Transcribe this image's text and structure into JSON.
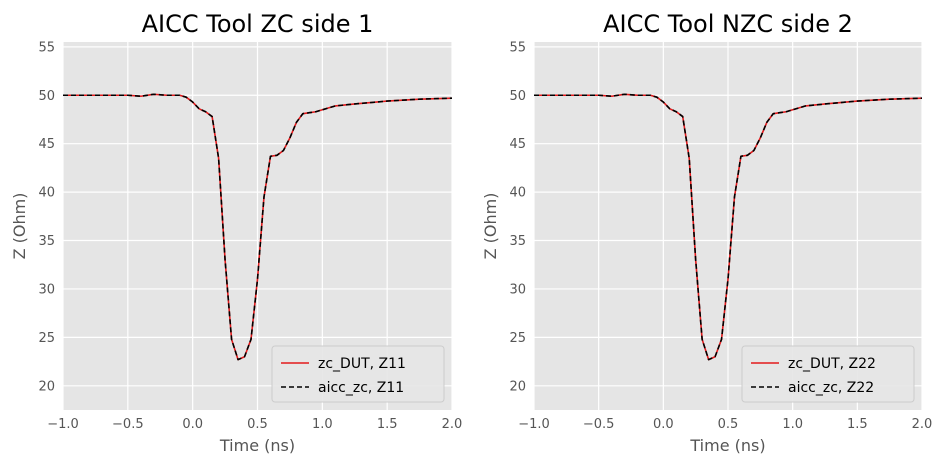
{
  "chart_data": [
    {
      "type": "line",
      "title": "AICC Tool ZC side 1",
      "xlabel": "Time (ns)",
      "ylabel": "Z (Ohm)",
      "xlim": [
        -1.0,
        2.0
      ],
      "ylim": [
        17.5,
        55.5
      ],
      "xticks": [
        "−1.0",
        "−0.5",
        "0.0",
        "0.5",
        "1.0",
        "1.5",
        "2.0"
      ],
      "xtick_values": [
        -1.0,
        -0.5,
        0.0,
        0.5,
        1.0,
        1.5,
        2.0
      ],
      "yticks": [
        "20",
        "25",
        "30",
        "35",
        "40",
        "45",
        "50",
        "55"
      ],
      "ytick_values": [
        20,
        25,
        30,
        35,
        40,
        45,
        50,
        55
      ],
      "grid": true,
      "background": "#e5e5e5",
      "legend_position": "lower right",
      "series": [
        {
          "name": "zc_DUT, Z11",
          "color": "#e41a1c",
          "style": "solid",
          "x": [
            -1.0,
            -0.75,
            -0.5,
            -0.4,
            -0.3,
            -0.2,
            -0.1,
            -0.05,
            0.0,
            0.05,
            0.1,
            0.15,
            0.2,
            0.25,
            0.3,
            0.35,
            0.4,
            0.45,
            0.5,
            0.55,
            0.6,
            0.65,
            0.7,
            0.75,
            0.8,
            0.85,
            0.9,
            0.95,
            1.0,
            1.1,
            1.25,
            1.5,
            1.75,
            2.0
          ],
          "y": [
            50.0,
            50.0,
            50.0,
            49.9,
            50.1,
            50.0,
            50.0,
            49.8,
            49.3,
            48.6,
            48.3,
            47.8,
            43.5,
            33.0,
            24.8,
            22.7,
            23.0,
            24.8,
            31.0,
            39.5,
            43.7,
            43.8,
            44.3,
            45.6,
            47.2,
            48.1,
            48.2,
            48.3,
            48.5,
            48.9,
            49.1,
            49.4,
            49.6,
            49.7
          ]
        },
        {
          "name": "aicc_zc, Z11",
          "color": "#000000",
          "style": "dashed",
          "x": [
            -1.0,
            -0.75,
            -0.5,
            -0.4,
            -0.3,
            -0.2,
            -0.1,
            -0.05,
            0.0,
            0.05,
            0.1,
            0.15,
            0.2,
            0.25,
            0.3,
            0.35,
            0.4,
            0.45,
            0.5,
            0.55,
            0.6,
            0.65,
            0.7,
            0.75,
            0.8,
            0.85,
            0.9,
            0.95,
            1.0,
            1.1,
            1.25,
            1.5,
            1.75,
            2.0
          ],
          "y": [
            50.0,
            50.0,
            50.0,
            49.9,
            50.1,
            50.0,
            50.0,
            49.8,
            49.3,
            48.6,
            48.3,
            47.8,
            43.5,
            33.0,
            24.8,
            22.7,
            23.0,
            24.8,
            31.0,
            39.5,
            43.7,
            43.8,
            44.3,
            45.6,
            47.2,
            48.1,
            48.2,
            48.3,
            48.5,
            48.9,
            49.1,
            49.4,
            49.6,
            49.7
          ]
        }
      ]
    },
    {
      "type": "line",
      "title": "AICC Tool NZC side 2",
      "xlabel": "Time (ns)",
      "ylabel": "Z (Ohm)",
      "xlim": [
        -1.0,
        2.0
      ],
      "ylim": [
        17.5,
        55.5
      ],
      "xticks": [
        "−1.0",
        "−0.5",
        "0.0",
        "0.5",
        "1.0",
        "1.5",
        "2.0"
      ],
      "xtick_values": [
        -1.0,
        -0.5,
        0.0,
        0.5,
        1.0,
        1.5,
        2.0
      ],
      "yticks": [
        "20",
        "25",
        "30",
        "35",
        "40",
        "45",
        "50",
        "55"
      ],
      "ytick_values": [
        20,
        25,
        30,
        35,
        40,
        45,
        50,
        55
      ],
      "grid": true,
      "background": "#e5e5e5",
      "legend_position": "lower right",
      "series": [
        {
          "name": "zc_DUT, Z22",
          "color": "#e41a1c",
          "style": "solid",
          "x": [
            -1.0,
            -0.75,
            -0.5,
            -0.4,
            -0.3,
            -0.2,
            -0.1,
            -0.05,
            0.0,
            0.05,
            0.1,
            0.15,
            0.2,
            0.25,
            0.3,
            0.35,
            0.4,
            0.45,
            0.5,
            0.55,
            0.6,
            0.65,
            0.7,
            0.75,
            0.8,
            0.85,
            0.9,
            0.95,
            1.0,
            1.1,
            1.25,
            1.5,
            1.75,
            2.0
          ],
          "y": [
            50.0,
            50.0,
            50.0,
            49.9,
            50.1,
            50.0,
            50.0,
            49.8,
            49.3,
            48.6,
            48.3,
            47.8,
            43.5,
            33.0,
            24.8,
            22.7,
            23.0,
            24.8,
            31.0,
            39.5,
            43.7,
            43.8,
            44.3,
            45.6,
            47.2,
            48.1,
            48.2,
            48.3,
            48.5,
            48.9,
            49.1,
            49.4,
            49.6,
            49.7
          ]
        },
        {
          "name": "aicc_zc, Z22",
          "color": "#000000",
          "style": "dashed",
          "x": [
            -1.0,
            -0.75,
            -0.5,
            -0.4,
            -0.3,
            -0.2,
            -0.1,
            -0.05,
            0.0,
            0.05,
            0.1,
            0.15,
            0.2,
            0.25,
            0.3,
            0.35,
            0.4,
            0.45,
            0.5,
            0.55,
            0.6,
            0.65,
            0.7,
            0.75,
            0.8,
            0.85,
            0.9,
            0.95,
            1.0,
            1.1,
            1.25,
            1.5,
            1.75,
            2.0
          ],
          "y": [
            50.0,
            50.0,
            50.0,
            49.9,
            50.1,
            50.0,
            50.0,
            49.8,
            49.3,
            48.6,
            48.3,
            47.8,
            43.5,
            33.0,
            24.8,
            22.7,
            23.0,
            24.8,
            31.0,
            39.5,
            43.7,
            43.8,
            44.3,
            45.6,
            47.2,
            48.1,
            48.2,
            48.3,
            48.5,
            48.9,
            49.1,
            49.4,
            49.6,
            49.7
          ]
        }
      ]
    }
  ]
}
